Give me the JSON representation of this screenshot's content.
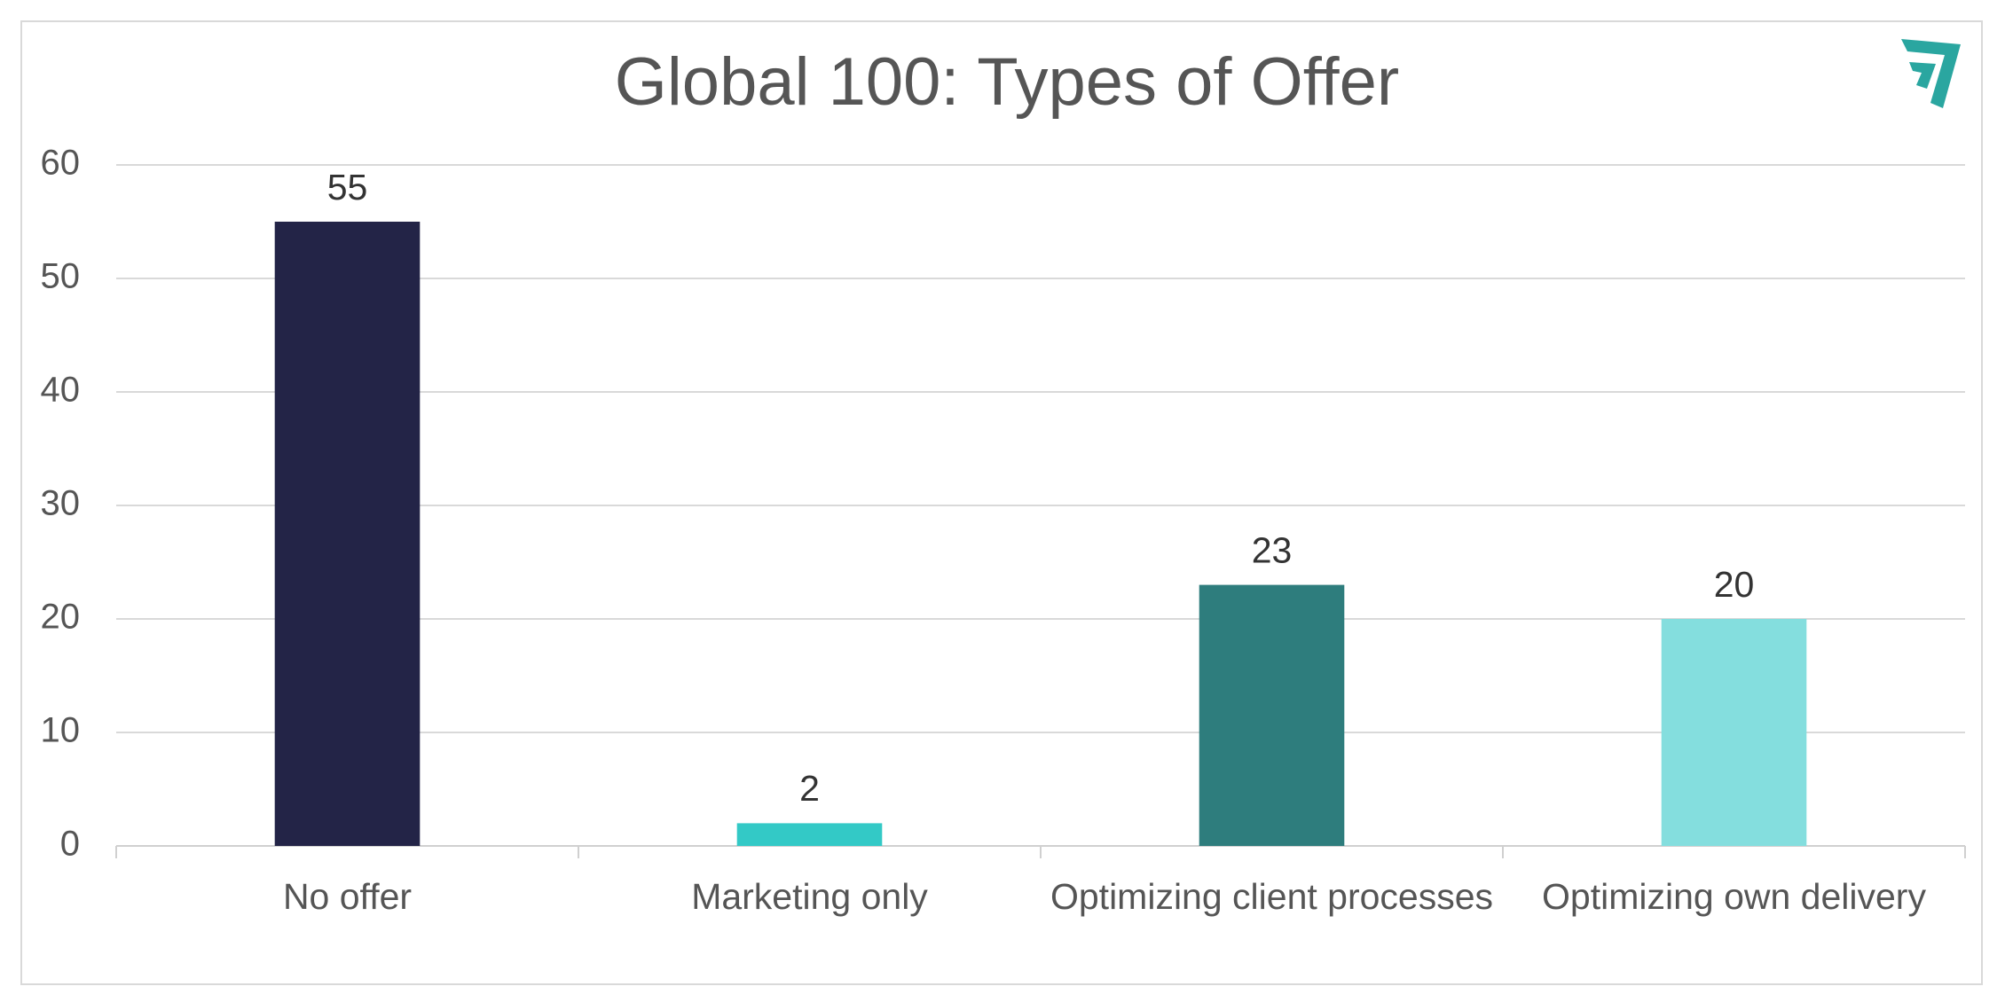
{
  "chart_data": {
    "type": "bar",
    "title": "Global 100: Types of Offer",
    "categories": [
      "No offer",
      "Marketing only",
      "Optimizing client processes",
      "Optimizing own delivery"
    ],
    "values": [
      55,
      2,
      23,
      20
    ],
    "colors": [
      "#232447",
      "#33c9c6",
      "#2e7d7d",
      "#84dede"
    ],
    "ylim": [
      0,
      60
    ],
    "yticks": [
      0,
      10,
      20,
      30,
      40,
      50,
      60
    ],
    "grid": true
  }
}
